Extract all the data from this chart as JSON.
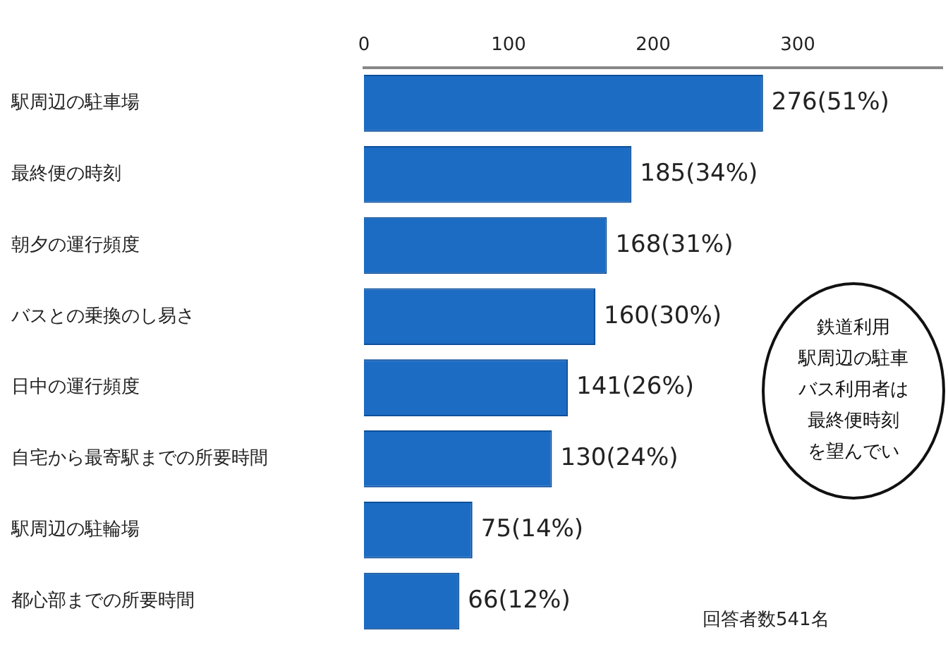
{
  "chart_data": {
    "type": "bar",
    "orientation": "horizontal",
    "categories": [
      "駅周辺の駐車場",
      "最終便の時刻",
      "朝夕の運行頻度",
      "バスとの乗換のし易さ",
      "日中の運行頻度",
      "自宅から最寄駅までの所要時間",
      "駅周辺の駐輪場",
      "都心部までの所要時間"
    ],
    "values": [
      276,
      185,
      168,
      160,
      141,
      130,
      75,
      66
    ],
    "value_labels": [
      "276(51%)",
      "185(34%)",
      "168(31%)",
      "160(30%)",
      "141(26%)",
      "130(24%)",
      "75(14%)",
      "66(12%)"
    ],
    "color": "#1c6cc4",
    "xlim": [
      0,
      400
    ],
    "xticks": [
      0,
      100,
      200,
      300
    ],
    "grid": false,
    "legend": false,
    "annotations": [
      "回答者数541名",
      "鉄道利用",
      "駅周辺の駐車",
      "バス利用者は",
      "最終便時刻",
      "を望んでい"
    ]
  }
}
